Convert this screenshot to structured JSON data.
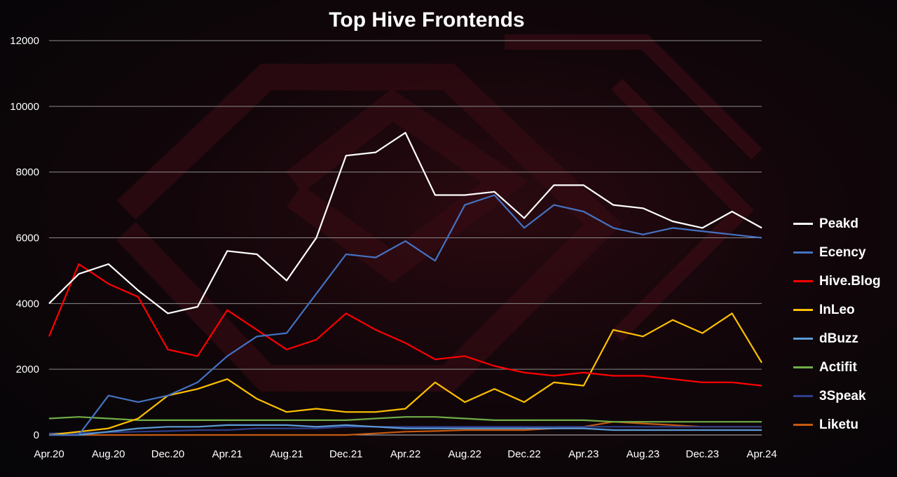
{
  "chart_data": {
    "type": "line",
    "title": "Top Hive Frontends",
    "xlabel": "",
    "ylabel": "",
    "ylim": [
      0,
      12000
    ],
    "yticks": [
      0,
      2000,
      4000,
      6000,
      8000,
      10000,
      12000
    ],
    "xticks": [
      "Apr.20",
      "Aug.20",
      "Dec.20",
      "Apr.21",
      "Aug.21",
      "Dec.21",
      "Apr.22",
      "Aug.22",
      "Dec.22",
      "Apr.23",
      "Aug.23",
      "Dec.23",
      "Apr.24"
    ],
    "x_range": [
      "Apr.20",
      "Apr.24"
    ],
    "grid": "horizontal",
    "legend_position": "right",
    "series": [
      {
        "name": "Peakd",
        "color": "#ffffff",
        "x": [
          "Apr.20",
          "Jun.20",
          "Aug.20",
          "Oct.20",
          "Dec.20",
          "Feb.21",
          "Apr.21",
          "Jun.21",
          "Aug.21",
          "Oct.21",
          "Dec.21",
          "Feb.22",
          "Apr.22",
          "Jun.22",
          "Aug.22",
          "Oct.22",
          "Dec.22",
          "Feb.23",
          "Apr.23",
          "Jun.23",
          "Aug.23",
          "Oct.23",
          "Dec.23",
          "Feb.24",
          "Apr.24"
        ],
        "values": [
          4000,
          4900,
          5200,
          4400,
          3700,
          3900,
          5600,
          5500,
          4700,
          6000,
          8500,
          8600,
          9200,
          7300,
          7300,
          7400,
          6600,
          7600,
          7600,
          7000,
          6900,
          6500,
          6300,
          6800,
          6300
        ]
      },
      {
        "name": "Ecency",
        "color": "#4472c4",
        "x": [
          "Apr.20",
          "Jun.20",
          "Aug.20",
          "Oct.20",
          "Dec.20",
          "Feb.21",
          "Apr.21",
          "Jun.21",
          "Aug.21",
          "Oct.21",
          "Dec.21",
          "Feb.22",
          "Apr.22",
          "Jun.22",
          "Aug.22",
          "Oct.22",
          "Dec.22",
          "Feb.23",
          "Apr.23",
          "Jun.23",
          "Aug.23",
          "Oct.23",
          "Dec.23",
          "Feb.24",
          "Apr.24"
        ],
        "values": [
          0,
          0,
          1200,
          1000,
          1200,
          1600,
          2400,
          3000,
          3100,
          4300,
          5500,
          5400,
          5900,
          5300,
          7000,
          7300,
          6300,
          7000,
          6800,
          6300,
          6100,
          6300,
          6200,
          6100,
          6000
        ]
      },
      {
        "name": "Hive.Blog",
        "color": "#ff0000",
        "x": [
          "Apr.20",
          "Jun.20",
          "Aug.20",
          "Oct.20",
          "Dec.20",
          "Feb.21",
          "Apr.21",
          "Jun.21",
          "Aug.21",
          "Oct.21",
          "Dec.21",
          "Feb.22",
          "Apr.22",
          "Jun.22",
          "Aug.22",
          "Oct.22",
          "Dec.22",
          "Feb.23",
          "Apr.23",
          "Jun.23",
          "Aug.23",
          "Oct.23",
          "Dec.23",
          "Feb.24",
          "Apr.24"
        ],
        "values": [
          3000,
          5200,
          4600,
          4200,
          2600,
          2400,
          3800,
          3200,
          2600,
          2900,
          3700,
          3200,
          2800,
          2300,
          2400,
          2100,
          1900,
          1800,
          1900,
          1800,
          1800,
          1700,
          1600,
          1600,
          1500
        ]
      },
      {
        "name": "InLeo",
        "color": "#ffc000",
        "x": [
          "Apr.20",
          "Jun.20",
          "Aug.20",
          "Oct.20",
          "Dec.20",
          "Feb.21",
          "Apr.21",
          "Jun.21",
          "Aug.21",
          "Oct.21",
          "Dec.21",
          "Feb.22",
          "Apr.22",
          "Jun.22",
          "Aug.22",
          "Oct.22",
          "Dec.22",
          "Feb.23",
          "Apr.23",
          "Jun.23",
          "Aug.23",
          "Oct.23",
          "Dec.23",
          "Feb.24",
          "Apr.24"
        ],
        "values": [
          0,
          100,
          200,
          500,
          1200,
          1400,
          1700,
          1100,
          700,
          800,
          700,
          700,
          800,
          1600,
          1000,
          1400,
          1000,
          1600,
          1500,
          3200,
          3000,
          3500,
          3100,
          3700,
          2200
        ]
      },
      {
        "name": "dBuzz",
        "color": "#5b9bd5",
        "x": [
          "Apr.20",
          "Jun.20",
          "Aug.20",
          "Oct.20",
          "Dec.20",
          "Feb.21",
          "Apr.21",
          "Jun.21",
          "Aug.21",
          "Oct.21",
          "Dec.21",
          "Feb.22",
          "Apr.22",
          "Jun.22",
          "Aug.22",
          "Oct.22",
          "Dec.22",
          "Feb.23",
          "Apr.23",
          "Jun.23",
          "Aug.23",
          "Oct.23",
          "Dec.23",
          "Feb.24",
          "Apr.24"
        ],
        "values": [
          0,
          0,
          100,
          200,
          250,
          250,
          300,
          300,
          300,
          250,
          300,
          250,
          200,
          200,
          200,
          200,
          200,
          200,
          200,
          150,
          150,
          150,
          150,
          150,
          150
        ]
      },
      {
        "name": "Actifit",
        "color": "#70ad47",
        "x": [
          "Apr.20",
          "Jun.20",
          "Aug.20",
          "Oct.20",
          "Dec.20",
          "Feb.21",
          "Apr.21",
          "Jun.21",
          "Aug.21",
          "Oct.21",
          "Dec.21",
          "Feb.22",
          "Apr.22",
          "Jun.22",
          "Aug.22",
          "Oct.22",
          "Dec.22",
          "Feb.23",
          "Apr.23",
          "Jun.23",
          "Aug.23",
          "Oct.23",
          "Dec.23",
          "Feb.24",
          "Apr.24"
        ],
        "values": [
          500,
          550,
          500,
          450,
          450,
          450,
          450,
          450,
          450,
          450,
          450,
          500,
          550,
          550,
          500,
          450,
          450,
          450,
          450,
          400,
          400,
          400,
          400,
          400,
          400
        ]
      },
      {
        "name": "3Speak",
        "color": "#2f3d8a",
        "x": [
          "Apr.20",
          "Jun.20",
          "Aug.20",
          "Oct.20",
          "Dec.20",
          "Feb.21",
          "Apr.21",
          "Jun.21",
          "Aug.21",
          "Oct.21",
          "Dec.21",
          "Feb.22",
          "Apr.22",
          "Jun.22",
          "Aug.22",
          "Oct.22",
          "Dec.22",
          "Feb.23",
          "Apr.23",
          "Jun.23",
          "Aug.23",
          "Oct.23",
          "Dec.23",
          "Feb.24",
          "Apr.24"
        ],
        "values": [
          50,
          60,
          80,
          100,
          120,
          150,
          150,
          200,
          200,
          200,
          250,
          250,
          250,
          250,
          250,
          250,
          250,
          250,
          250,
          250,
          250,
          250,
          250,
          250,
          250
        ]
      },
      {
        "name": "Liketu",
        "color": "#c55a11",
        "x": [
          "Apr.20",
          "Jun.20",
          "Aug.20",
          "Oct.20",
          "Dec.20",
          "Feb.21",
          "Apr.21",
          "Jun.21",
          "Aug.21",
          "Oct.21",
          "Dec.21",
          "Feb.22",
          "Apr.22",
          "Jun.22",
          "Aug.22",
          "Oct.22",
          "Dec.22",
          "Feb.23",
          "Apr.23",
          "Jun.23",
          "Aug.23",
          "Oct.23",
          "Dec.23",
          "Feb.24",
          "Apr.24"
        ],
        "values": [
          0,
          0,
          0,
          0,
          0,
          0,
          0,
          0,
          0,
          0,
          0,
          50,
          100,
          120,
          150,
          150,
          150,
          200,
          250,
          400,
          350,
          300,
          250,
          250,
          250
        ]
      }
    ]
  }
}
